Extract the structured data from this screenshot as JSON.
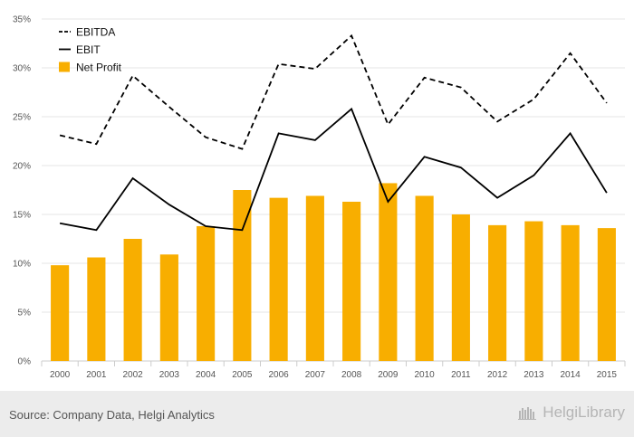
{
  "chart_data": {
    "type": "bar",
    "categories": [
      "2000",
      "2001",
      "2002",
      "2003",
      "2004",
      "2005",
      "2006",
      "2007",
      "2008",
      "2009",
      "2010",
      "2011",
      "2012",
      "2013",
      "2014",
      "2015"
    ],
    "series": [
      {
        "name": "EBITDA",
        "type": "line",
        "style": "dashed",
        "color": "#000000",
        "values": [
          23.1,
          22.2,
          29.2,
          26.0,
          22.9,
          21.7,
          30.4,
          29.9,
          33.3,
          24.2,
          29.0,
          28.0,
          24.5,
          26.8,
          31.5,
          26.4
        ]
      },
      {
        "name": "EBIT",
        "type": "line",
        "style": "solid",
        "color": "#000000",
        "values": [
          14.1,
          13.4,
          18.7,
          16.0,
          13.8,
          13.4,
          23.3,
          22.6,
          25.8,
          16.3,
          20.9,
          19.8,
          16.7,
          19.0,
          23.3,
          17.2
        ]
      },
      {
        "name": "Net Profit",
        "type": "bar",
        "color": "#f8ae00",
        "values": [
          9.8,
          10.6,
          12.5,
          10.9,
          13.8,
          17.5,
          16.7,
          16.9,
          16.3,
          18.2,
          16.9,
          15.0,
          13.9,
          14.3,
          13.9,
          13.6
        ]
      }
    ],
    "y_ticks": [
      "0%",
      "5%",
      "10%",
      "15%",
      "20%",
      "25%",
      "30%",
      "35%"
    ],
    "ylim": [
      0,
      35
    ],
    "title": "",
    "xlabel": "",
    "ylabel": "",
    "grid": true,
    "legend_position": "top-left"
  },
  "footer": {
    "source": "Source: Company Data, Helgi Analytics",
    "brand": "HelgiLibrary"
  }
}
